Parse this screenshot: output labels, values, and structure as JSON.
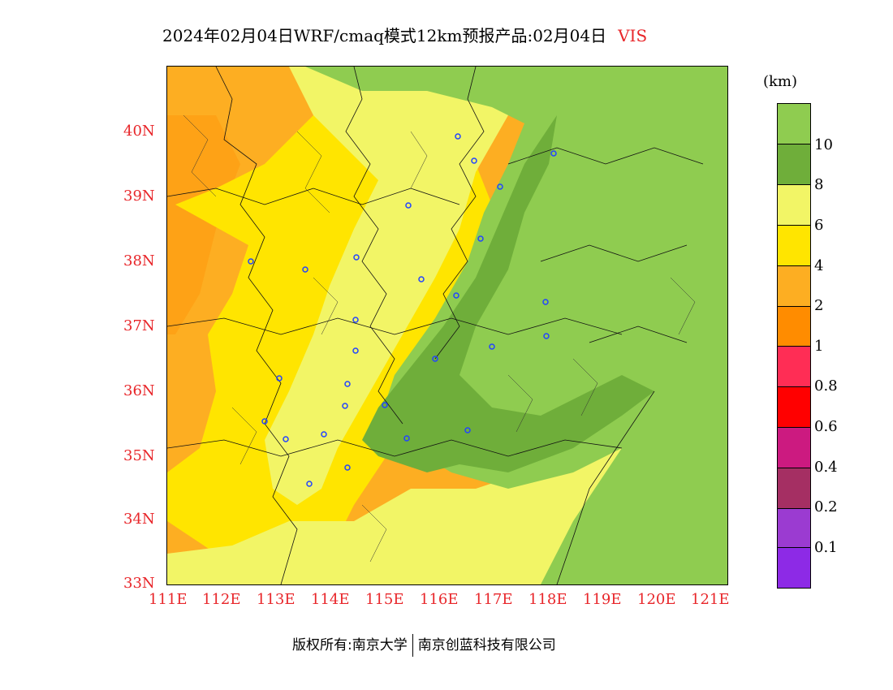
{
  "title": {
    "main": "2024年02月04日WRF/cmaq模式12km预报产品:02月04日",
    "variable": "VIS"
  },
  "axes": {
    "lat_labels": [
      "40N",
      "39N",
      "38N",
      "37N",
      "36N",
      "35N",
      "34N",
      "33N"
    ],
    "lon_labels": [
      "111E",
      "112E",
      "113E",
      "114E",
      "115E",
      "116E",
      "117E",
      "118E",
      "119E",
      "120E",
      "121E"
    ]
  },
  "legend": {
    "unit": "(km)",
    "colors": [
      "#8d2ae6",
      "#9b3bd1",
      "#a52f63",
      "#cc1a80",
      "#ff0000",
      "#ff2d55",
      "#ff8c00",
      "#fdae22",
      "#ffe500",
      "#f2f566",
      "#6fae3a",
      "#8fcc50"
    ],
    "labels": [
      "10",
      "8",
      "6",
      "4",
      "2",
      "1",
      "0.8",
      "0.6",
      "0.4",
      "0.2",
      "0.1"
    ]
  },
  "copyright": {
    "left": "版权所有:南京大学",
    "right": "南京创蓝科技有限公司"
  },
  "colors": {
    "orange": "#fdae22",
    "dark_orange": "#ff8c00",
    "yellow": "#ffe500",
    "light_yellow": "#f2f566",
    "dark_green": "#6fae3a",
    "green": "#8fcc50",
    "city_marker": "#2244ff"
  }
}
